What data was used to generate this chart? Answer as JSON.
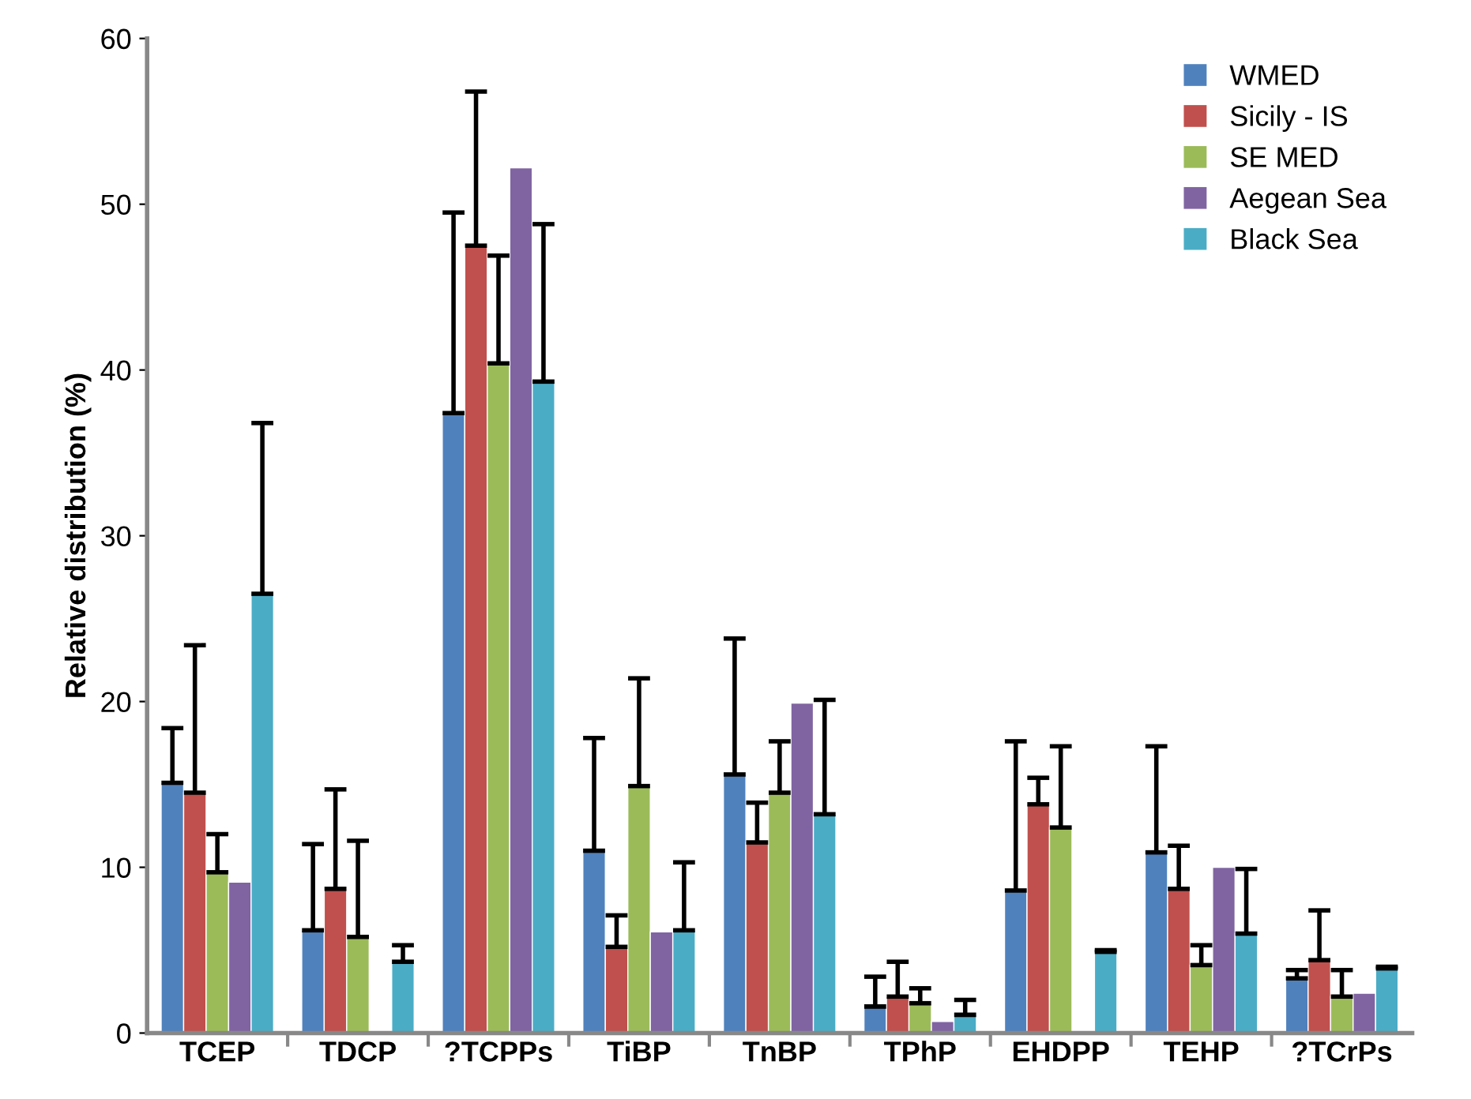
{
  "chart_data": {
    "type": "bar",
    "ylabel": "Relative distribution (%)",
    "categories": [
      "TCEP",
      "TDCP",
      "?TCPPs",
      "TiBP",
      "TnBP",
      "TPhP",
      "EHDPP",
      "TEHP",
      "?TCrPs"
    ],
    "series": [
      {
        "name": "WMED",
        "color": "#4f81bd",
        "values": [
          15.1,
          6.2,
          37.4,
          11.0,
          15.6,
          1.6,
          8.6,
          10.9,
          3.3
        ],
        "errors": [
          [
            15.1,
            18.4
          ],
          [
            6.2,
            11.4
          ],
          [
            37.4,
            49.5
          ],
          [
            11.0,
            17.8
          ],
          [
            15.6,
            23.8
          ],
          [
            1.6,
            3.4
          ],
          [
            8.6,
            17.6
          ],
          [
            10.9,
            17.3
          ],
          [
            3.3,
            3.8
          ]
        ]
      },
      {
        "name": "Sicily - IS",
        "color": "#c0504d",
        "values": [
          14.5,
          8.7,
          47.5,
          5.2,
          11.5,
          2.2,
          13.8,
          8.7,
          4.4
        ],
        "errors": [
          [
            14.5,
            23.4
          ],
          [
            8.7,
            14.7
          ],
          [
            47.5,
            56.8
          ],
          [
            5.2,
            7.1
          ],
          [
            11.5,
            13.9
          ],
          [
            2.2,
            4.3
          ],
          [
            13.8,
            15.4
          ],
          [
            8.7,
            11.3
          ],
          [
            4.4,
            7.4
          ]
        ]
      },
      {
        "name": "SE MED",
        "color": "#9bbb59",
        "values": [
          9.7,
          5.8,
          40.4,
          14.9,
          14.5,
          1.8,
          12.4,
          4.1,
          2.2
        ],
        "errors": [
          [
            9.7,
            12.0
          ],
          [
            5.8,
            11.6
          ],
          [
            40.4,
            46.9
          ],
          [
            14.9,
            21.4
          ],
          [
            14.5,
            17.6
          ],
          [
            1.8,
            2.7
          ],
          [
            12.4,
            17.3
          ],
          [
            4.1,
            5.3
          ],
          [
            2.2,
            3.8
          ]
        ]
      },
      {
        "name": "Aegean Sea",
        "color": "#8064a2",
        "values": [
          9.1,
          null,
          52.2,
          6.1,
          19.9,
          0.7,
          null,
          10.0,
          2.4
        ]
      },
      {
        "name": "Black Sea",
        "color": "#4bacc6",
        "values": [
          26.5,
          4.3,
          39.3,
          6.2,
          13.2,
          1.1,
          4.9,
          6.0,
          3.9
        ],
        "errors": [
          [
            26.5,
            36.8
          ],
          [
            4.3,
            5.3
          ],
          [
            39.3,
            48.8
          ],
          [
            6.2,
            10.3
          ],
          [
            13.2,
            20.1
          ],
          [
            1.1,
            2.0
          ],
          [
            4.9,
            5.0
          ],
          [
            6.0,
            9.9
          ],
          [
            3.9,
            4.0
          ]
        ]
      }
    ],
    "ylim": [
      0,
      60
    ],
    "yticks": [
      0,
      10,
      20,
      30,
      40,
      50,
      60
    ],
    "legend": "top right",
    "grid": false
  }
}
